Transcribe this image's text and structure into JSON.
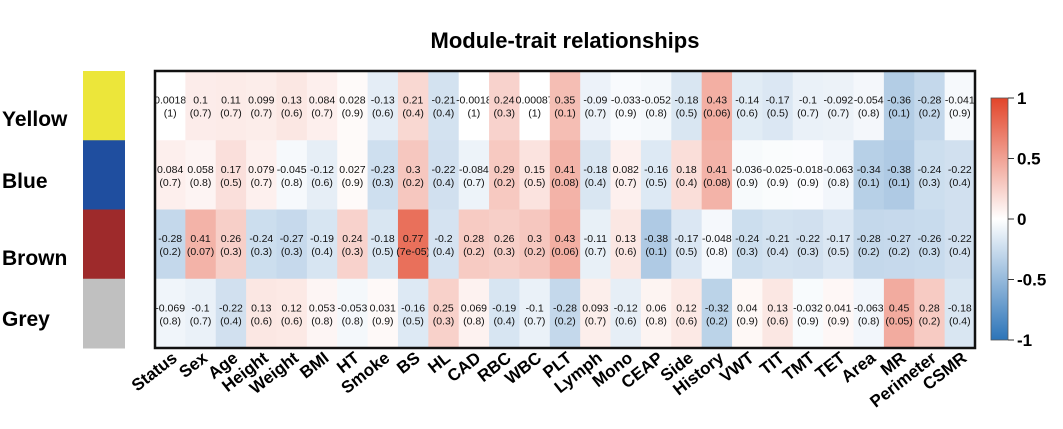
{
  "chart_data": {
    "type": "heatmap",
    "title": "Module-trait relationships",
    "rows": [
      {
        "name": "Yellow",
        "color": "#ece63a"
      },
      {
        "name": "Blue",
        "color": "#1f4e9f"
      },
      {
        "name": "Brown",
        "color": "#9e2a2b"
      },
      {
        "name": "Grey",
        "color": "#c0c0c0"
      }
    ],
    "columns": [
      "Status",
      "Sex",
      "Age",
      "Height",
      "Weight",
      "BMI",
      "HT",
      "Smoke",
      "BS",
      "HL",
      "CAD",
      "RBC",
      "WBC",
      "PLT",
      "Lymph",
      "Mono",
      "CEAP",
      "Side",
      "History",
      "VWT",
      "TIT",
      "TMT",
      "TET",
      "Area",
      "MR",
      "Perimeter",
      "CSMR"
    ],
    "values": [
      [
        "0.0018",
        "0.1",
        "0.11",
        "0.099",
        "0.13",
        "0.084",
        "0.028",
        "-0.13",
        "0.21",
        "-0.21",
        "-0.0018",
        "0.24",
        "0.00087",
        "0.35",
        "-0.09",
        "-0.033",
        "-0.052",
        "-0.18",
        "0.43",
        "-0.14",
        "-0.17",
        "-0.1",
        "-0.092",
        "-0.054",
        "-0.36",
        "-0.28",
        "-0.041"
      ],
      [
        "0.084",
        "0.058",
        "0.17",
        "0.079",
        "-0.045",
        "-0.12",
        "0.027",
        "-0.23",
        "0.3",
        "-0.22",
        "-0.084",
        "0.29",
        "0.15",
        "0.41",
        "-0.18",
        "0.082",
        "-0.16",
        "0.18",
        "0.41",
        "-0.036",
        "-0.025",
        "-0.018",
        "-0.063",
        "-0.34",
        "-0.38",
        "-0.24",
        "-0.22"
      ],
      [
        "-0.28",
        "0.41",
        "0.26",
        "-0.24",
        "-0.27",
        "-0.19",
        "0.24",
        "-0.18",
        "0.77",
        "-0.2",
        "0.28",
        "0.26",
        "0.3",
        "0.43",
        "-0.11",
        "0.13",
        "-0.38",
        "-0.17",
        "-0.048",
        "-0.24",
        "-0.21",
        "-0.22",
        "-0.17",
        "-0.28",
        "-0.27",
        "-0.26",
        "-0.22"
      ],
      [
        "-0.069",
        "-0.1",
        "-0.22",
        "0.13",
        "0.12",
        "0.053",
        "-0.053",
        "0.031",
        "-0.16",
        "0.25",
        "0.069",
        "-0.19",
        "-0.1",
        "-0.28",
        "0.093",
        "-0.12",
        "0.06",
        "0.12",
        "-0.32",
        "0.04",
        "0.13",
        "-0.032",
        "0.041",
        "-0.063",
        "0.45",
        "0.28",
        "-0.18"
      ]
    ],
    "p_values": [
      [
        "(1)",
        "(0.7)",
        "(0.7)",
        "(0.7)",
        "(0.6)",
        "(0.7)",
        "(0.9)",
        "(0.6)",
        "(0.4)",
        "(0.4)",
        "(1)",
        "(0.3)",
        "(1)",
        "(0.1)",
        "(0.7)",
        "(0.9)",
        "(0.8)",
        "(0.5)",
        "(0.06)",
        "(0.6)",
        "(0.5)",
        "(0.7)",
        "(0.7)",
        "(0.8)",
        "(0.1)",
        "(0.2)",
        "(0.9)"
      ],
      [
        "(0.7)",
        "(0.8)",
        "(0.5)",
        "(0.7)",
        "(0.8)",
        "(0.6)",
        "(0.9)",
        "(0.3)",
        "(0.2)",
        "(0.4)",
        "(0.7)",
        "(0.2)",
        "(0.5)",
        "(0.08)",
        "(0.4)",
        "(0.7)",
        "(0.5)",
        "(0.4)",
        "(0.08)",
        "(0.9)",
        "(0.9)",
        "(0.9)",
        "(0.8)",
        "(0.1)",
        "(0.1)",
        "(0.3)",
        "(0.4)"
      ],
      [
        "(0.2)",
        "(0.07)",
        "(0.3)",
        "(0.3)",
        "(0.3)",
        "(0.4)",
        "(0.3)",
        "(0.5)",
        "(7e-05)",
        "(0.4)",
        "(0.2)",
        "(0.3)",
        "(0.2)",
        "(0.06)",
        "(0.7)",
        "(0.6)",
        "(0.1)",
        "(0.5)",
        "(0.8)",
        "(0.3)",
        "(0.4)",
        "(0.3)",
        "(0.5)",
        "(0.2)",
        "(0.2)",
        "(0.3)",
        "(0.4)"
      ],
      [
        "(0.8)",
        "(0.7)",
        "(0.4)",
        "(0.6)",
        "(0.6)",
        "(0.8)",
        "(0.8)",
        "(0.9)",
        "(0.5)",
        "(0.3)",
        "(0.8)",
        "(0.4)",
        "(0.7)",
        "(0.2)",
        "(0.7)",
        "(0.6)",
        "(0.8)",
        "(0.6)",
        "(0.2)",
        "(0.9)",
        "(0.6)",
        "(0.9)",
        "(0.9)",
        "(0.8)",
        "(0.05)",
        "(0.2)",
        "(0.4)"
      ]
    ],
    "colorscale": {
      "min": -1,
      "max": 1,
      "low_color": "#2c74b8",
      "mid_color": "#ffffff",
      "high_color": "#e2452a"
    },
    "colorbar_ticks": [
      "1",
      "0.5",
      "0",
      "-0.5",
      "-1"
    ],
    "legend_placement": "right"
  }
}
